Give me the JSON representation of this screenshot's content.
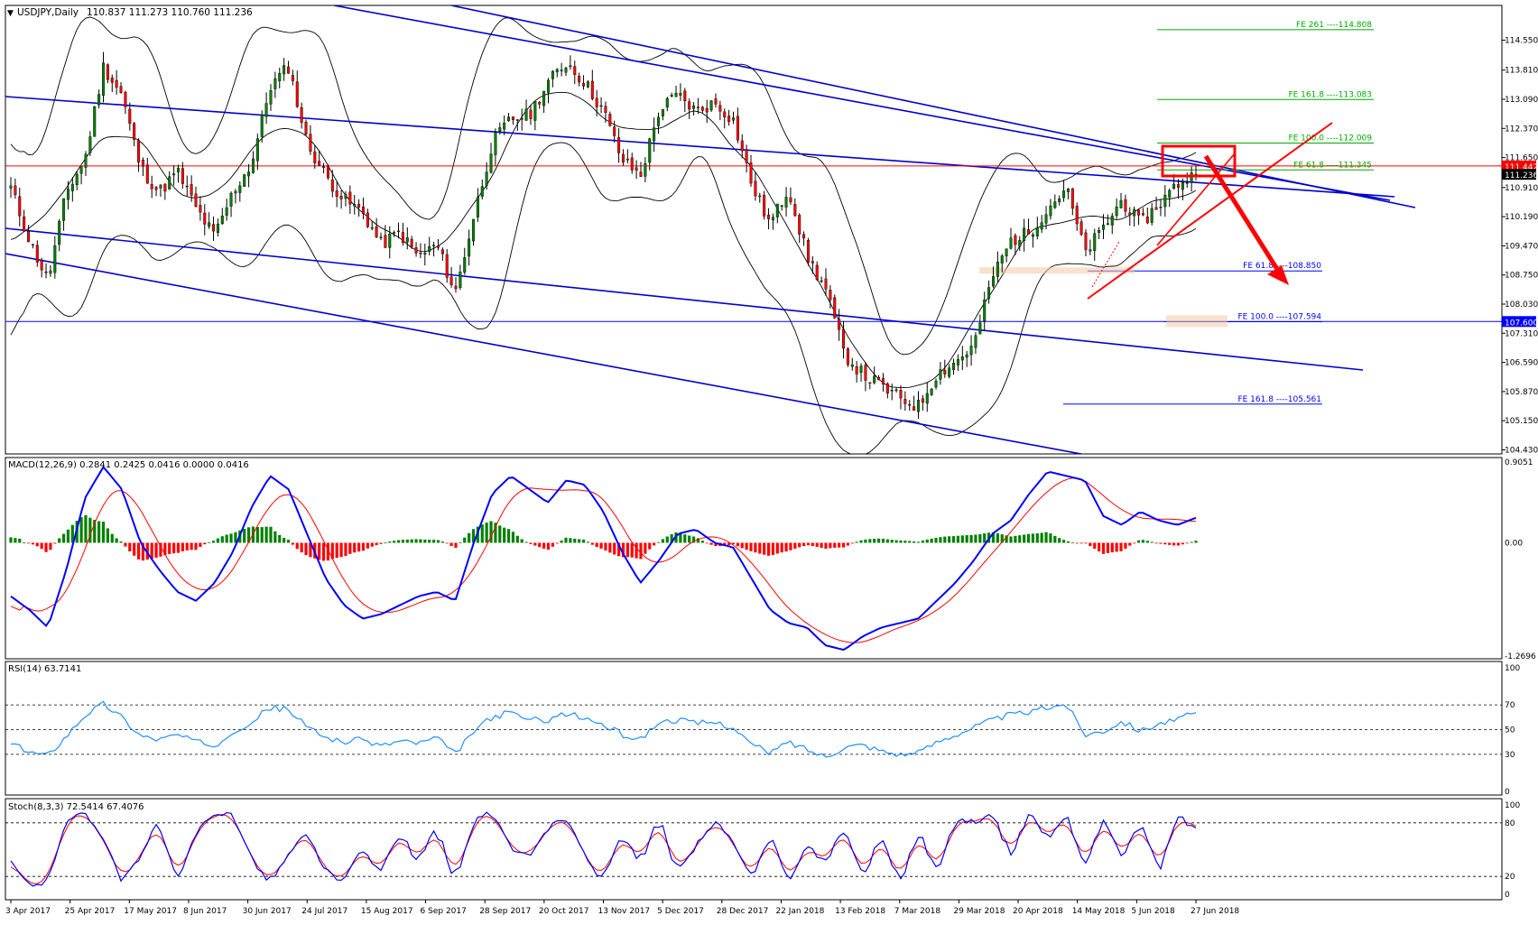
{
  "header": {
    "symbol_label": "USDJPY,Daily",
    "ohlc": "110.837 111.273 110.760 111.236"
  },
  "colors": {
    "bull": "#008000",
    "bear": "#ff0000",
    "channel": "#0000cd",
    "resistance": "#ff0000",
    "support": "#0000ff",
    "fib_up": "#00aa00",
    "fib_down": "#0000ff",
    "macd_line": "#0000ff",
    "signal_line": "#ff0000",
    "rsi_line": "#1e90ff",
    "stoch_main": "#0000ff",
    "stoch_signal": "#ff0000",
    "arrow": "#ff0000"
  },
  "chart_data": [
    {
      "type": "candlestick",
      "panel": "price",
      "title": "USDJPY,Daily",
      "ylim": [
        104.2,
        114.95
      ],
      "y_ticks": [
        "114.550",
        "113.810",
        "113.090",
        "112.370",
        "111.650",
        "110.910",
        "110.190",
        "109.470",
        "108.750",
        "108.030",
        "107.310",
        "106.590",
        "105.870",
        "105.150",
        "104.430"
      ],
      "x_labels": [
        "3 Apr 2017",
        "25 Apr 2017",
        "17 May 2017",
        "8 Jun 2017",
        "30 Jun 2017",
        "24 Jul 2017",
        "15 Aug 2017",
        "6 Sep 2017",
        "28 Sep 2017",
        "20 Oct 2017",
        "13 Nov 2017",
        "5 Dec 2017",
        "28 Dec 2017",
        "22 Jan 2018",
        "13 Feb 2018",
        "7 Mar 2018",
        "29 Mar 2018",
        "20 Apr 2018",
        "14 May 2018",
        "5 Jun 2018",
        "27 Jun 2018"
      ],
      "close_path": [
        110.9,
        109.6,
        108.6,
        110.8,
        111.6,
        113.9,
        113.2,
        111.4,
        110.8,
        111.3,
        110.4,
        109.7,
        110.8,
        111.5,
        113.4,
        113.9,
        112.0,
        111.2,
        110.6,
        110.3,
        109.5,
        109.8,
        109.2,
        109.5,
        108.3,
        110.2,
        112.0,
        112.6,
        112.7,
        113.5,
        114.0,
        113.5,
        112.8,
        111.6,
        111.2,
        112.8,
        113.2,
        112.8,
        113.0,
        112.6,
        111.0,
        110.0,
        110.9,
        109.2,
        108.4,
        106.8,
        106.3,
        106.0,
        105.7,
        105.5,
        106.3,
        106.6,
        107.0,
        108.7,
        109.6,
        109.8,
        110.4,
        110.9,
        109.3,
        109.9,
        110.6,
        110.0,
        110.5,
        111.0,
        111.24
      ],
      "last_price": "111.236",
      "price_labels": [
        {
          "text": "111.442",
          "value": 111.442,
          "color": "#ff0000"
        },
        {
          "text": "111.236",
          "value": 111.236,
          "color": "#000000"
        },
        {
          "text": "107.600",
          "value": 107.6,
          "color": "#0000ff"
        }
      ],
      "horizontal_lines": [
        {
          "name": "resistance",
          "value": 111.442,
          "color": "#ff0000"
        },
        {
          "name": "support",
          "value": 107.6,
          "color": "#0000ff"
        }
      ],
      "fibonacci_up": [
        {
          "label": "FE 261 ----114.808",
          "value": 114.808
        },
        {
          "label": "FE 161.8 ----113.083",
          "value": 113.083
        },
        {
          "label": "FE 100.0 ----112.009",
          "value": 112.009
        },
        {
          "label": "FE 61.8 ----111.345",
          "value": 111.345
        }
      ],
      "fibonacci_down": [
        {
          "label": "FE 61.8 ----108.850",
          "value": 108.85
        },
        {
          "label": "FE 100.0 ----107.594",
          "value": 107.594
        },
        {
          "label": "FE 161.8 ----105.561",
          "value": 105.561
        }
      ]
    },
    {
      "type": "line",
      "panel": "macd",
      "title": "MACD(12,26,9) 0.2841 0.2425 0.0416 0.0000 0.0416",
      "ylim": [
        -1.27,
        0.91
      ],
      "y_ticks": [
        "0.9051",
        "0.00",
        "-1.2696"
      ],
      "series": [
        {
          "name": "MACD",
          "values": [
            -0.6,
            -0.75,
            -0.95,
            -0.3,
            0.5,
            0.85,
            0.6,
            0.0,
            -0.3,
            -0.55,
            -0.65,
            -0.45,
            -0.1,
            0.4,
            0.75,
            0.6,
            0.1,
            -0.4,
            -0.7,
            -0.85,
            -0.8,
            -0.7,
            -0.6,
            -0.55,
            -0.65,
            0.0,
            0.55,
            0.75,
            0.6,
            0.45,
            0.7,
            0.65,
            0.35,
            -0.1,
            -0.45,
            -0.2,
            0.1,
            0.15,
            0.0,
            -0.05,
            -0.4,
            -0.75,
            -0.9,
            -0.95,
            -1.15,
            -1.2,
            -1.05,
            -0.95,
            -0.9,
            -0.85,
            -0.65,
            -0.45,
            -0.2,
            0.1,
            0.25,
            0.55,
            0.8,
            0.75,
            0.7,
            0.3,
            0.2,
            0.35,
            0.25,
            0.2,
            0.28
          ]
        }
      ]
    },
    {
      "type": "line",
      "panel": "rsi",
      "title": "RSI(14) 63.7141",
      "ylim": [
        0,
        100
      ],
      "y_ticks": [
        "100",
        "70",
        "50",
        "30",
        "0"
      ],
      "series": [
        {
          "name": "RSI(14)",
          "values": [
            38,
            32,
            29,
            45,
            62,
            71,
            60,
            45,
            42,
            46,
            40,
            37,
            49,
            56,
            68,
            66,
            52,
            44,
            40,
            42,
            37,
            41,
            39,
            43,
            30,
            49,
            60,
            64,
            58,
            58,
            63,
            59,
            54,
            46,
            42,
            56,
            58,
            55,
            56,
            52,
            38,
            31,
            40,
            34,
            28,
            36,
            38,
            33,
            30,
            31,
            40,
            46,
            52,
            58,
            62,
            64,
            68,
            71,
            46,
            49,
            57,
            49,
            55,
            58,
            63.7
          ]
        }
      ]
    },
    {
      "type": "line",
      "panel": "stochastic",
      "title": "Stoch(8,3,3) 72.5414 67.4076",
      "ylim": [
        0,
        100
      ],
      "y_ticks": [
        "100",
        "80",
        "20",
        "0"
      ],
      "series": [
        {
          "name": "Stoch main",
          "values": [
            35,
            10,
            14,
            85,
            90,
            65,
            15,
            40,
            85,
            10,
            70,
            88,
            92,
            40,
            12,
            45,
            70,
            25,
            12,
            55,
            20,
            75,
            30,
            80,
            8,
            85,
            92,
            50,
            40,
            75,
            88,
            40,
            15,
            72,
            30,
            90,
            20,
            55,
            85,
            60,
            12,
            70,
            10,
            60,
            30,
            80,
            15,
            70,
            8,
            75,
            20,
            85,
            80,
            92,
            40,
            95,
            60,
            90,
            30,
            86,
            40,
            80,
            25,
            88,
            72.5
          ]
        },
        {
          "name": "Stoch signal",
          "values": [
            40,
            15,
            12,
            80,
            88,
            70,
            20,
            35,
            80,
            15,
            65,
            85,
            90,
            45,
            15,
            40,
            68,
            30,
            15,
            50,
            25,
            70,
            35,
            75,
            12,
            80,
            90,
            55,
            42,
            70,
            85,
            45,
            18,
            68,
            34,
            86,
            25,
            52,
            82,
            62,
            16,
            66,
            14,
            56,
            33,
            76,
            19,
            66,
            12,
            70,
            24,
            80,
            82,
            90,
            45,
            92,
            63,
            87,
            34,
            82,
            43,
            78,
            28,
            84,
            67.4
          ]
        }
      ]
    }
  ]
}
